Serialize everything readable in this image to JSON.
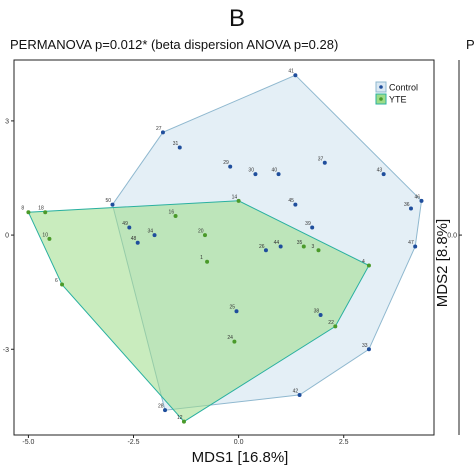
{
  "panel": {
    "letter": "B",
    "right_edge_letter": "P"
  },
  "chart_data": {
    "type": "scatter",
    "title": "PERMANOVA p=0.012* (beta dispersion ANOVA p=0.28)",
    "xlabel": "MDS1 [16.8%]",
    "ylabel": "MDS2 [8.8%]",
    "xlim": [
      -5.2,
      4.6
    ],
    "ylim": [
      -5.2,
      4.6
    ],
    "xticks": [
      {
        "value": -5.0,
        "label": "-5.0"
      },
      {
        "value": -2.5,
        "label": "-2.5"
      },
      {
        "value": 0.0,
        "label": "0.0"
      },
      {
        "value": 2.5,
        "label": "2.5"
      }
    ],
    "yticks": [
      {
        "value": 3,
        "label": "3"
      },
      {
        "value": 0,
        "label": "0"
      },
      {
        "value": -3,
        "label": "-3"
      }
    ],
    "right_yticks": [
      {
        "value": 0.0,
        "label": "0.0"
      }
    ],
    "legend": {
      "placement": "top-right",
      "entries": [
        "Control",
        "YTE"
      ]
    },
    "colors": {
      "control_point": "#1f4e9c",
      "control_fill": "#dbe9f3",
      "control_stroke": "#8fb8cf",
      "yte_point": "#4a9a2a",
      "yte_fill": "#9ddc88",
      "yte_stroke": "#2ab0a0"
    },
    "series": [
      {
        "name": "Control",
        "points": [
          {
            "id": "41",
            "x": 1.35,
            "y": 4.2
          },
          {
            "id": "27",
            "x": -1.8,
            "y": 2.7
          },
          {
            "id": "31",
            "x": -1.4,
            "y": 2.3
          },
          {
            "id": "37",
            "x": 2.05,
            "y": 1.9
          },
          {
            "id": "29",
            "x": -0.2,
            "y": 1.8
          },
          {
            "id": "30",
            "x": 0.4,
            "y": 1.6
          },
          {
            "id": "40",
            "x": 0.95,
            "y": 1.6
          },
          {
            "id": "43",
            "x": 3.45,
            "y": 1.6
          },
          {
            "id": "46",
            "x": 4.35,
            "y": 0.9
          },
          {
            "id": "36",
            "x": 4.1,
            "y": 0.7
          },
          {
            "id": "45",
            "x": 1.35,
            "y": 0.8
          },
          {
            "id": "50",
            "x": -3.0,
            "y": 0.8
          },
          {
            "id": "49",
            "x": -2.6,
            "y": 0.2
          },
          {
            "id": "48",
            "x": -2.4,
            "y": -0.2
          },
          {
            "id": "34",
            "x": -2.0,
            "y": 0.0
          },
          {
            "id": "39",
            "x": 1.75,
            "y": 0.2
          },
          {
            "id": "44",
            "x": 1.0,
            "y": -0.3
          },
          {
            "id": "26",
            "x": 0.65,
            "y": -0.4
          },
          {
            "id": "47",
            "x": 4.2,
            "y": -0.3
          },
          {
            "id": "25",
            "x": -0.05,
            "y": -2.0
          },
          {
            "id": "38",
            "x": 1.95,
            "y": -2.1
          },
          {
            "id": "33",
            "x": 3.1,
            "y": -3.0
          },
          {
            "id": "42",
            "x": 1.45,
            "y": -4.2
          },
          {
            "id": "28",
            "x": -1.75,
            "y": -4.6
          }
        ]
      },
      {
        "name": "YTE",
        "points": [
          {
            "id": "8",
            "x": -5.0,
            "y": 0.6
          },
          {
            "id": "18",
            "x": -4.6,
            "y": 0.6
          },
          {
            "id": "14",
            "x": 0.0,
            "y": 0.9
          },
          {
            "id": "16",
            "x": -1.5,
            "y": 0.5
          },
          {
            "id": "20",
            "x": -0.8,
            "y": 0.0
          },
          {
            "id": "10",
            "x": -4.5,
            "y": -0.1
          },
          {
            "id": "35",
            "x": 1.55,
            "y": -0.3
          },
          {
            "id": "3",
            "x": 1.9,
            "y": -0.4
          },
          {
            "id": "1",
            "x": -0.75,
            "y": -0.7
          },
          {
            "id": "4",
            "x": 3.1,
            "y": -0.8
          },
          {
            "id": "6",
            "x": -4.2,
            "y": -1.3
          },
          {
            "id": "22",
            "x": 2.3,
            "y": -2.4
          },
          {
            "id": "24",
            "x": -0.1,
            "y": -2.8
          },
          {
            "id": "12",
            "x": -1.3,
            "y": -4.9
          }
        ]
      }
    ]
  }
}
